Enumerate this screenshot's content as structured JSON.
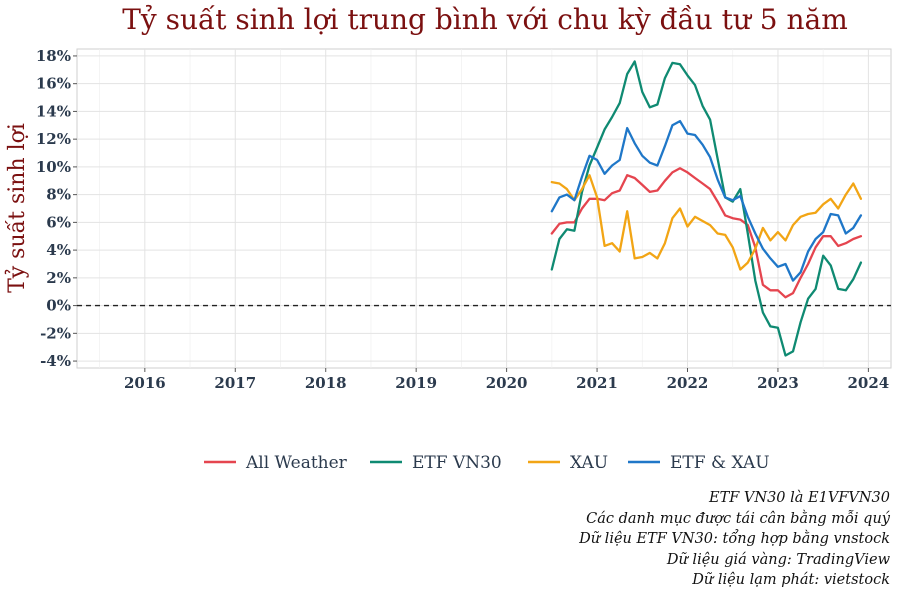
{
  "chart_data": {
    "type": "line",
    "title": "Tỷ suất sinh lợi trung bình với chu kỳ đầu tư 5 năm",
    "xlabel": "",
    "ylabel": "Tỷ suất sinh lợi",
    "xlim": [
      2015.25,
      2024.25
    ],
    "ylim": [
      -4.5,
      18.5
    ],
    "x_ticks": [
      2016,
      2017,
      2018,
      2019,
      2020,
      2021,
      2022,
      2023,
      2024
    ],
    "y_ticks": [
      -4,
      -2,
      0,
      2,
      4,
      6,
      8,
      10,
      12,
      14,
      16,
      18
    ],
    "y_tick_labels": [
      "-4%",
      "-2%",
      "0%",
      "2%",
      "4%",
      "6%",
      "8%",
      "10%",
      "12%",
      "14%",
      "16%",
      "18%"
    ],
    "x_tick_labels": [
      "2016",
      "2017",
      "2018",
      "2019",
      "2020",
      "2021",
      "2022",
      "2023",
      "2024"
    ],
    "grid": true,
    "reference_line": {
      "y": 0,
      "style": "dashed"
    },
    "legend_position": "bottom",
    "x_start": 2020.5,
    "x_step": 0.0833333,
    "series": [
      {
        "name": "All Weather",
        "color": "#e5454f",
        "values": [
          5.2,
          5.9,
          6.0,
          6.0,
          7.0,
          7.7,
          7.7,
          7.6,
          8.1,
          8.3,
          9.4,
          9.2,
          8.7,
          8.2,
          8.3,
          9.0,
          9.6,
          9.9,
          9.6,
          9.2,
          8.8,
          8.4,
          7.5,
          6.5,
          6.3,
          6.2,
          5.8,
          4.2,
          1.5,
          1.1,
          1.1,
          0.6,
          0.9,
          2.0,
          3.0,
          4.2,
          5.0,
          5.0,
          4.3,
          4.5,
          4.8,
          5.0
        ]
      },
      {
        "name": "ETF VN30",
        "color": "#0f8a72",
        "values": [
          2.6,
          4.8,
          5.5,
          5.4,
          8.2,
          10.1,
          11.4,
          12.7,
          13.6,
          14.6,
          16.7,
          17.6,
          15.4,
          14.3,
          14.5,
          16.4,
          17.5,
          17.4,
          16.6,
          15.9,
          14.4,
          13.4,
          10.6,
          7.8,
          7.5,
          8.4,
          5.2,
          1.8,
          -0.5,
          -1.5,
          -1.6,
          -3.6,
          -3.3,
          -1.2,
          0.5,
          1.2,
          3.6,
          2.9,
          1.2,
          1.1,
          1.9,
          3.1
        ]
      },
      {
        "name": "XAU",
        "color": "#f2a515",
        "values": [
          8.9,
          8.8,
          8.4,
          7.6,
          8.4,
          9.4,
          7.8,
          4.3,
          4.5,
          3.9,
          6.8,
          3.4,
          3.5,
          3.8,
          3.4,
          4.5,
          6.3,
          7.0,
          5.7,
          6.4,
          6.1,
          5.8,
          5.2,
          5.1,
          4.2,
          2.6,
          3.1,
          4.1,
          5.6,
          4.7,
          5.3,
          4.7,
          5.8,
          6.4,
          6.6,
          6.7,
          7.3,
          7.7,
          7.0,
          8.0,
          8.8,
          7.7
        ]
      },
      {
        "name": "ETF & XAU",
        "color": "#1f77c8",
        "values": [
          6.8,
          7.8,
          8.0,
          7.6,
          9.3,
          10.8,
          10.5,
          9.5,
          10.1,
          10.5,
          12.8,
          11.7,
          10.8,
          10.3,
          10.1,
          11.5,
          13.0,
          13.3,
          12.4,
          12.3,
          11.6,
          10.7,
          9.1,
          7.8,
          7.6,
          7.9,
          6.4,
          5.2,
          4.1,
          3.4,
          2.8,
          3.0,
          1.8,
          2.4,
          3.9,
          4.8,
          5.3,
          6.6,
          6.5,
          5.2,
          5.6,
          6.5
        ]
      }
    ]
  },
  "caption_lines": [
    "ETF VN30 là E1VFVN30",
    "Các danh mục được tái cân bằng mỗi quý",
    "Dữ liệu ETF VN30: tổng hợp bằng vnstock",
    "Dữ liệu giá vàng: TradingView",
    "Dữ liệu lạm phát: vietstock"
  ]
}
